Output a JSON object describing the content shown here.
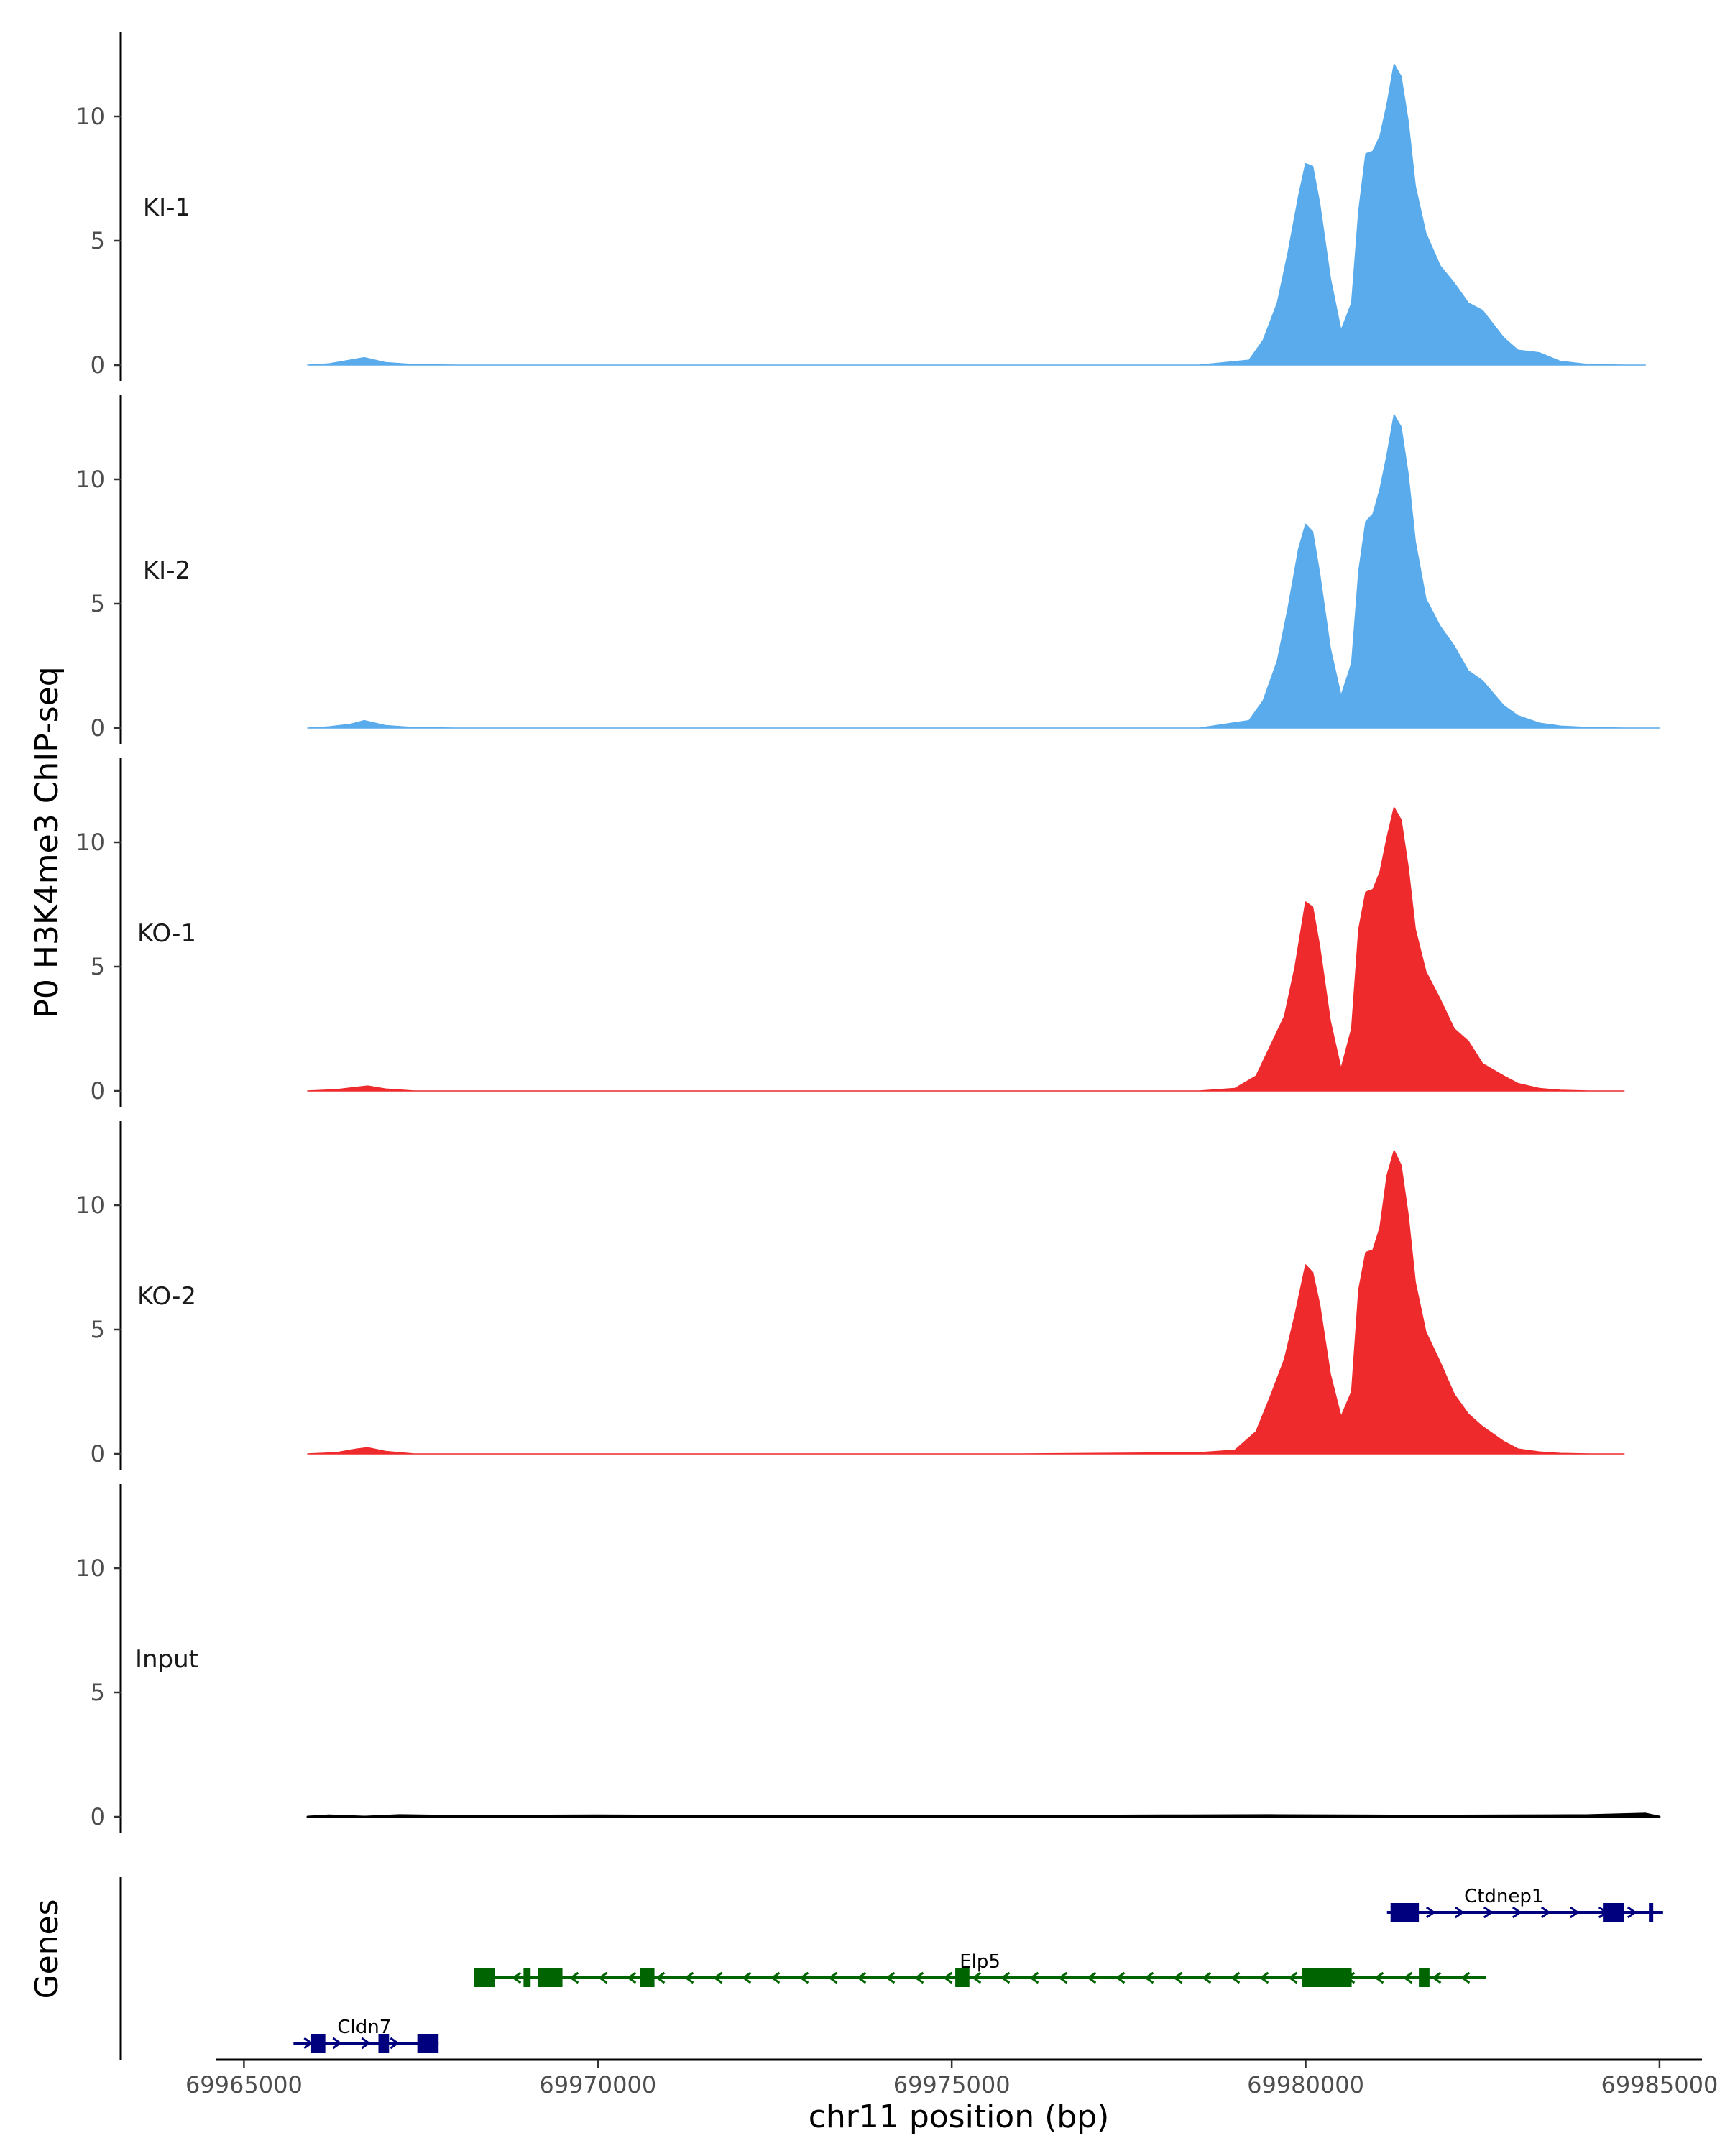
{
  "chart_data": {
    "type": "area",
    "title": "",
    "xlabel": "chr11 position (bp)",
    "ylabel": "P0 H3K4me3 ChIP-seq",
    "genes_panel_label": "Genes",
    "xlim": [
      69964600,
      69985600
    ],
    "ylim": [
      0,
      13
    ],
    "x_ticks": [
      69965000,
      69970000,
      69975000,
      69980000,
      69985000
    ],
    "x_tick_labels": [
      "69965000",
      "69970000",
      "69975000",
      "69980000",
      "69985000"
    ],
    "y_ticks": [
      0,
      5,
      10
    ],
    "y_tick_labels": [
      "0",
      "5",
      "10"
    ],
    "tracks": [
      {
        "name": "KI-1",
        "color": "#5aabeb",
        "x": [
          69965900,
          69966200,
          69966500,
          69966700,
          69967000,
          69967400,
          69968000,
          69972000,
          69976000,
          69978500,
          69979200,
          69979400,
          69979600,
          69979750,
          69979900,
          69980000,
          69980100,
          69980200,
          69980350,
          69980500,
          69980650,
          69980750,
          69980850,
          69980950,
          69981050,
          69981150,
          69981250,
          69981350,
          69981450,
          69981550,
          69981700,
          69981900,
          69982100,
          69982300,
          69982500,
          69982800,
          69983000,
          69983300,
          69983600,
          69984000,
          69984500,
          69984800
        ],
        "values": [
          0,
          0.05,
          0.2,
          0.3,
          0.1,
          0.02,
          0,
          0,
          0,
          0,
          0.2,
          1.0,
          2.5,
          4.5,
          6.8,
          8.1,
          8.0,
          6.5,
          3.5,
          1.4,
          2.5,
          6.2,
          8.5,
          8.6,
          9.2,
          10.5,
          12.1,
          11.6,
          9.8,
          7.2,
          5.3,
          4.0,
          3.3,
          2.5,
          2.2,
          1.1,
          0.6,
          0.5,
          0.15,
          0.02,
          0,
          0
        ]
      },
      {
        "name": "KI-2",
        "color": "#5aabeb",
        "x": [
          69965900,
          69966200,
          69966500,
          69966700,
          69967000,
          69967400,
          69968000,
          69972000,
          69976000,
          69978500,
          69979200,
          69979400,
          69979600,
          69979750,
          69979900,
          69980000,
          69980100,
          69980200,
          69980350,
          69980500,
          69980650,
          69980750,
          69980850,
          69980950,
          69981050,
          69981150,
          69981250,
          69981350,
          69981450,
          69981550,
          69981700,
          69981900,
          69982100,
          69982300,
          69982500,
          69982800,
          69983000,
          69983300,
          69983600,
          69984000,
          69984500,
          69985000
        ],
        "values": [
          0,
          0.05,
          0.15,
          0.3,
          0.1,
          0.02,
          0,
          0,
          0,
          0,
          0.3,
          1.1,
          2.7,
          4.8,
          7.2,
          8.2,
          7.9,
          6.2,
          3.2,
          1.3,
          2.6,
          6.3,
          8.3,
          8.6,
          9.6,
          11.0,
          12.6,
          12.1,
          10.2,
          7.5,
          5.2,
          4.1,
          3.3,
          2.3,
          1.9,
          0.9,
          0.5,
          0.2,
          0.08,
          0.02,
          0,
          0
        ]
      },
      {
        "name": "KO-1",
        "color": "#ee2a2c",
        "x": [
          69965900,
          69966300,
          69966600,
          69966750,
          69967000,
          69967400,
          69968000,
          69972000,
          69976000,
          69978500,
          69979000,
          69979300,
          69979500,
          69979700,
          69979850,
          69980000,
          69980100,
          69980200,
          69980350,
          69980500,
          69980650,
          69980750,
          69980850,
          69980950,
          69981050,
          69981150,
          69981250,
          69981350,
          69981450,
          69981550,
          69981700,
          69981900,
          69982100,
          69982300,
          69982500,
          69982800,
          69983000,
          69983300,
          69983600,
          69984000,
          69984500
        ],
        "values": [
          0,
          0.05,
          0.15,
          0.2,
          0.08,
          0,
          0,
          0,
          0,
          0,
          0.1,
          0.6,
          1.8,
          3.0,
          5.0,
          7.6,
          7.4,
          5.8,
          2.8,
          0.9,
          2.5,
          6.5,
          8.0,
          8.1,
          8.8,
          10.2,
          11.4,
          10.9,
          9.0,
          6.5,
          4.8,
          3.7,
          2.5,
          2.0,
          1.1,
          0.6,
          0.3,
          0.1,
          0.03,
          0,
          0
        ]
      },
      {
        "name": "KO-2",
        "color": "#ee2a2c",
        "x": [
          69965900,
          69966300,
          69966600,
          69966750,
          69967000,
          69967400,
          69968000,
          69972000,
          69976000,
          69978500,
          69979000,
          69979300,
          69979500,
          69979700,
          69979850,
          69980000,
          69980100,
          69980200,
          69980350,
          69980500,
          69980650,
          69980750,
          69980850,
          69980950,
          69981050,
          69981150,
          69981250,
          69981350,
          69981450,
          69981550,
          69981700,
          69981900,
          69982100,
          69982300,
          69982500,
          69982800,
          69983000,
          69983300,
          69983600,
          69984000,
          69984500
        ],
        "values": [
          0,
          0.05,
          0.2,
          0.25,
          0.1,
          0,
          0,
          0,
          0,
          0.05,
          0.15,
          0.9,
          2.3,
          3.8,
          5.6,
          7.6,
          7.3,
          6.0,
          3.2,
          1.5,
          2.5,
          6.6,
          8.1,
          8.2,
          9.1,
          11.2,
          12.2,
          11.6,
          9.6,
          6.9,
          4.9,
          3.7,
          2.4,
          1.6,
          1.1,
          0.5,
          0.2,
          0.08,
          0.02,
          0,
          0
        ]
      },
      {
        "name": "Input",
        "color": "#000000",
        "x": [
          69965900,
          69966200,
          69966700,
          69967200,
          69968000,
          69970000,
          69972000,
          69974000,
          69976000,
          69978000,
          69979500,
          69981500,
          69983000,
          69984000,
          69984800,
          69985000
        ],
        "values": [
          0,
          0.05,
          0,
          0.06,
          0.03,
          0.05,
          0.03,
          0.04,
          0.03,
          0.05,
          0.06,
          0.04,
          0.05,
          0.06,
          0.12,
          0
        ]
      }
    ],
    "genes": [
      {
        "name": "Ctdnep1",
        "strand": "+",
        "color": "#00007f",
        "row": 1,
        "start": 69981150,
        "end": 69985050,
        "exons": [
          [
            69981200,
            69981600
          ],
          [
            69984200,
            69984500
          ],
          [
            69984850,
            69984900
          ]
        ]
      },
      {
        "name": "Elp5",
        "strand": "-",
        "color": "#006400",
        "row": 2,
        "start": 69968250,
        "end": 69982550,
        "exons": [
          [
            69968250,
            69968550
          ],
          [
            69968950,
            69969050
          ],
          [
            69969150,
            69969500
          ],
          [
            69970600,
            69970800
          ],
          [
            69975050,
            69975250
          ],
          [
            69979950,
            69980650
          ],
          [
            69981600,
            69981750
          ]
        ]
      },
      {
        "name": "Cldn7",
        "strand": "+",
        "color": "#00007f",
        "row": 3,
        "start": 69965700,
        "end": 69967750,
        "exons": [
          [
            69965950,
            69966150
          ],
          [
            69966900,
            69967050
          ],
          [
            69967450,
            69967750
          ]
        ]
      }
    ]
  }
}
